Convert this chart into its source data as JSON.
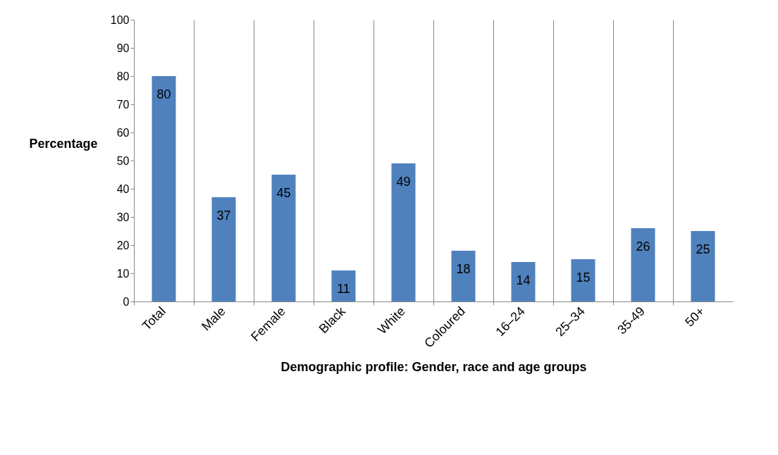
{
  "chart_data": {
    "type": "bar",
    "xlabel": "Demographic profile: Gender, race and age groups",
    "ylabel": "Percentage",
    "categories": [
      "Total",
      "Male",
      "Female",
      "Black",
      "White",
      "Coloured",
      "16–24",
      "25–34",
      "35-49",
      "50+"
    ],
    "values": [
      80,
      37,
      45,
      11,
      49,
      18,
      14,
      15,
      26,
      25
    ],
    "color": "#4f81bd",
    "ylim": [
      0,
      100
    ],
    "yticks": [
      0,
      10,
      20,
      30,
      40,
      50,
      60,
      70,
      80,
      90,
      100
    ],
    "grid": "x",
    "data_labels": true
  }
}
